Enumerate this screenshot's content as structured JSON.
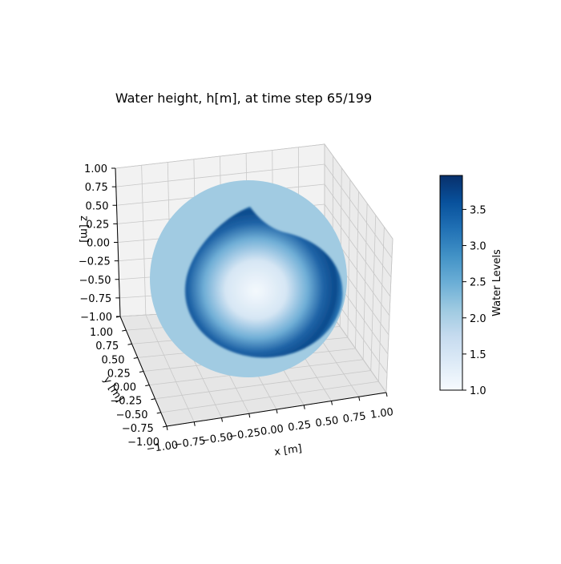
{
  "chart_data": {
    "type": "surface",
    "title": "Water height, h[m], at time step 65/199",
    "xlabel": "x [m]",
    "ylabel": "y [m]",
    "zlabel": "z [m]",
    "xlim": [
      -1.0,
      1.0
    ],
    "ylim": [
      -1.0,
      1.0
    ],
    "zlim": [
      -1.0,
      1.0
    ],
    "x_ticks": [
      "−1.00",
      "−0.75",
      "−0.50",
      "−0.25",
      "0.00",
      "0.25",
      "0.50",
      "0.75",
      "1.00"
    ],
    "y_ticks": [
      "1.00",
      "0.75",
      "0.50",
      "0.25",
      "0.00",
      "−0.25",
      "−0.50",
      "−0.75",
      "−1.00"
    ],
    "z_ticks": [
      "1.00",
      "0.75",
      "0.50",
      "0.25",
      "0.00",
      "−0.25",
      "−0.50",
      "−0.75",
      "−1.00"
    ],
    "grid": true,
    "surface": "sphere",
    "colorbar": {
      "label": "Water Levels",
      "min": 1.0,
      "max": 3.97,
      "ticks": [
        "1.0",
        "1.5",
        "2.0",
        "2.5",
        "3.0",
        "3.5"
      ],
      "tick_values": [
        1.0,
        1.5,
        2.0,
        2.5,
        3.0,
        3.5
      ],
      "colormap": "Blues",
      "colors": [
        "#f7fbff",
        "#deebf7",
        "#c6dbef",
        "#9ecae1",
        "#6baed6",
        "#4292c6",
        "#2171b5",
        "#08519c",
        "#08306b"
      ]
    },
    "sphere_colors": {
      "background": "#a1cbe2",
      "ring_dark": "#0b4a8c",
      "ring_mid": "#2a78b8",
      "center_light": "#f4f9fd"
    }
  }
}
